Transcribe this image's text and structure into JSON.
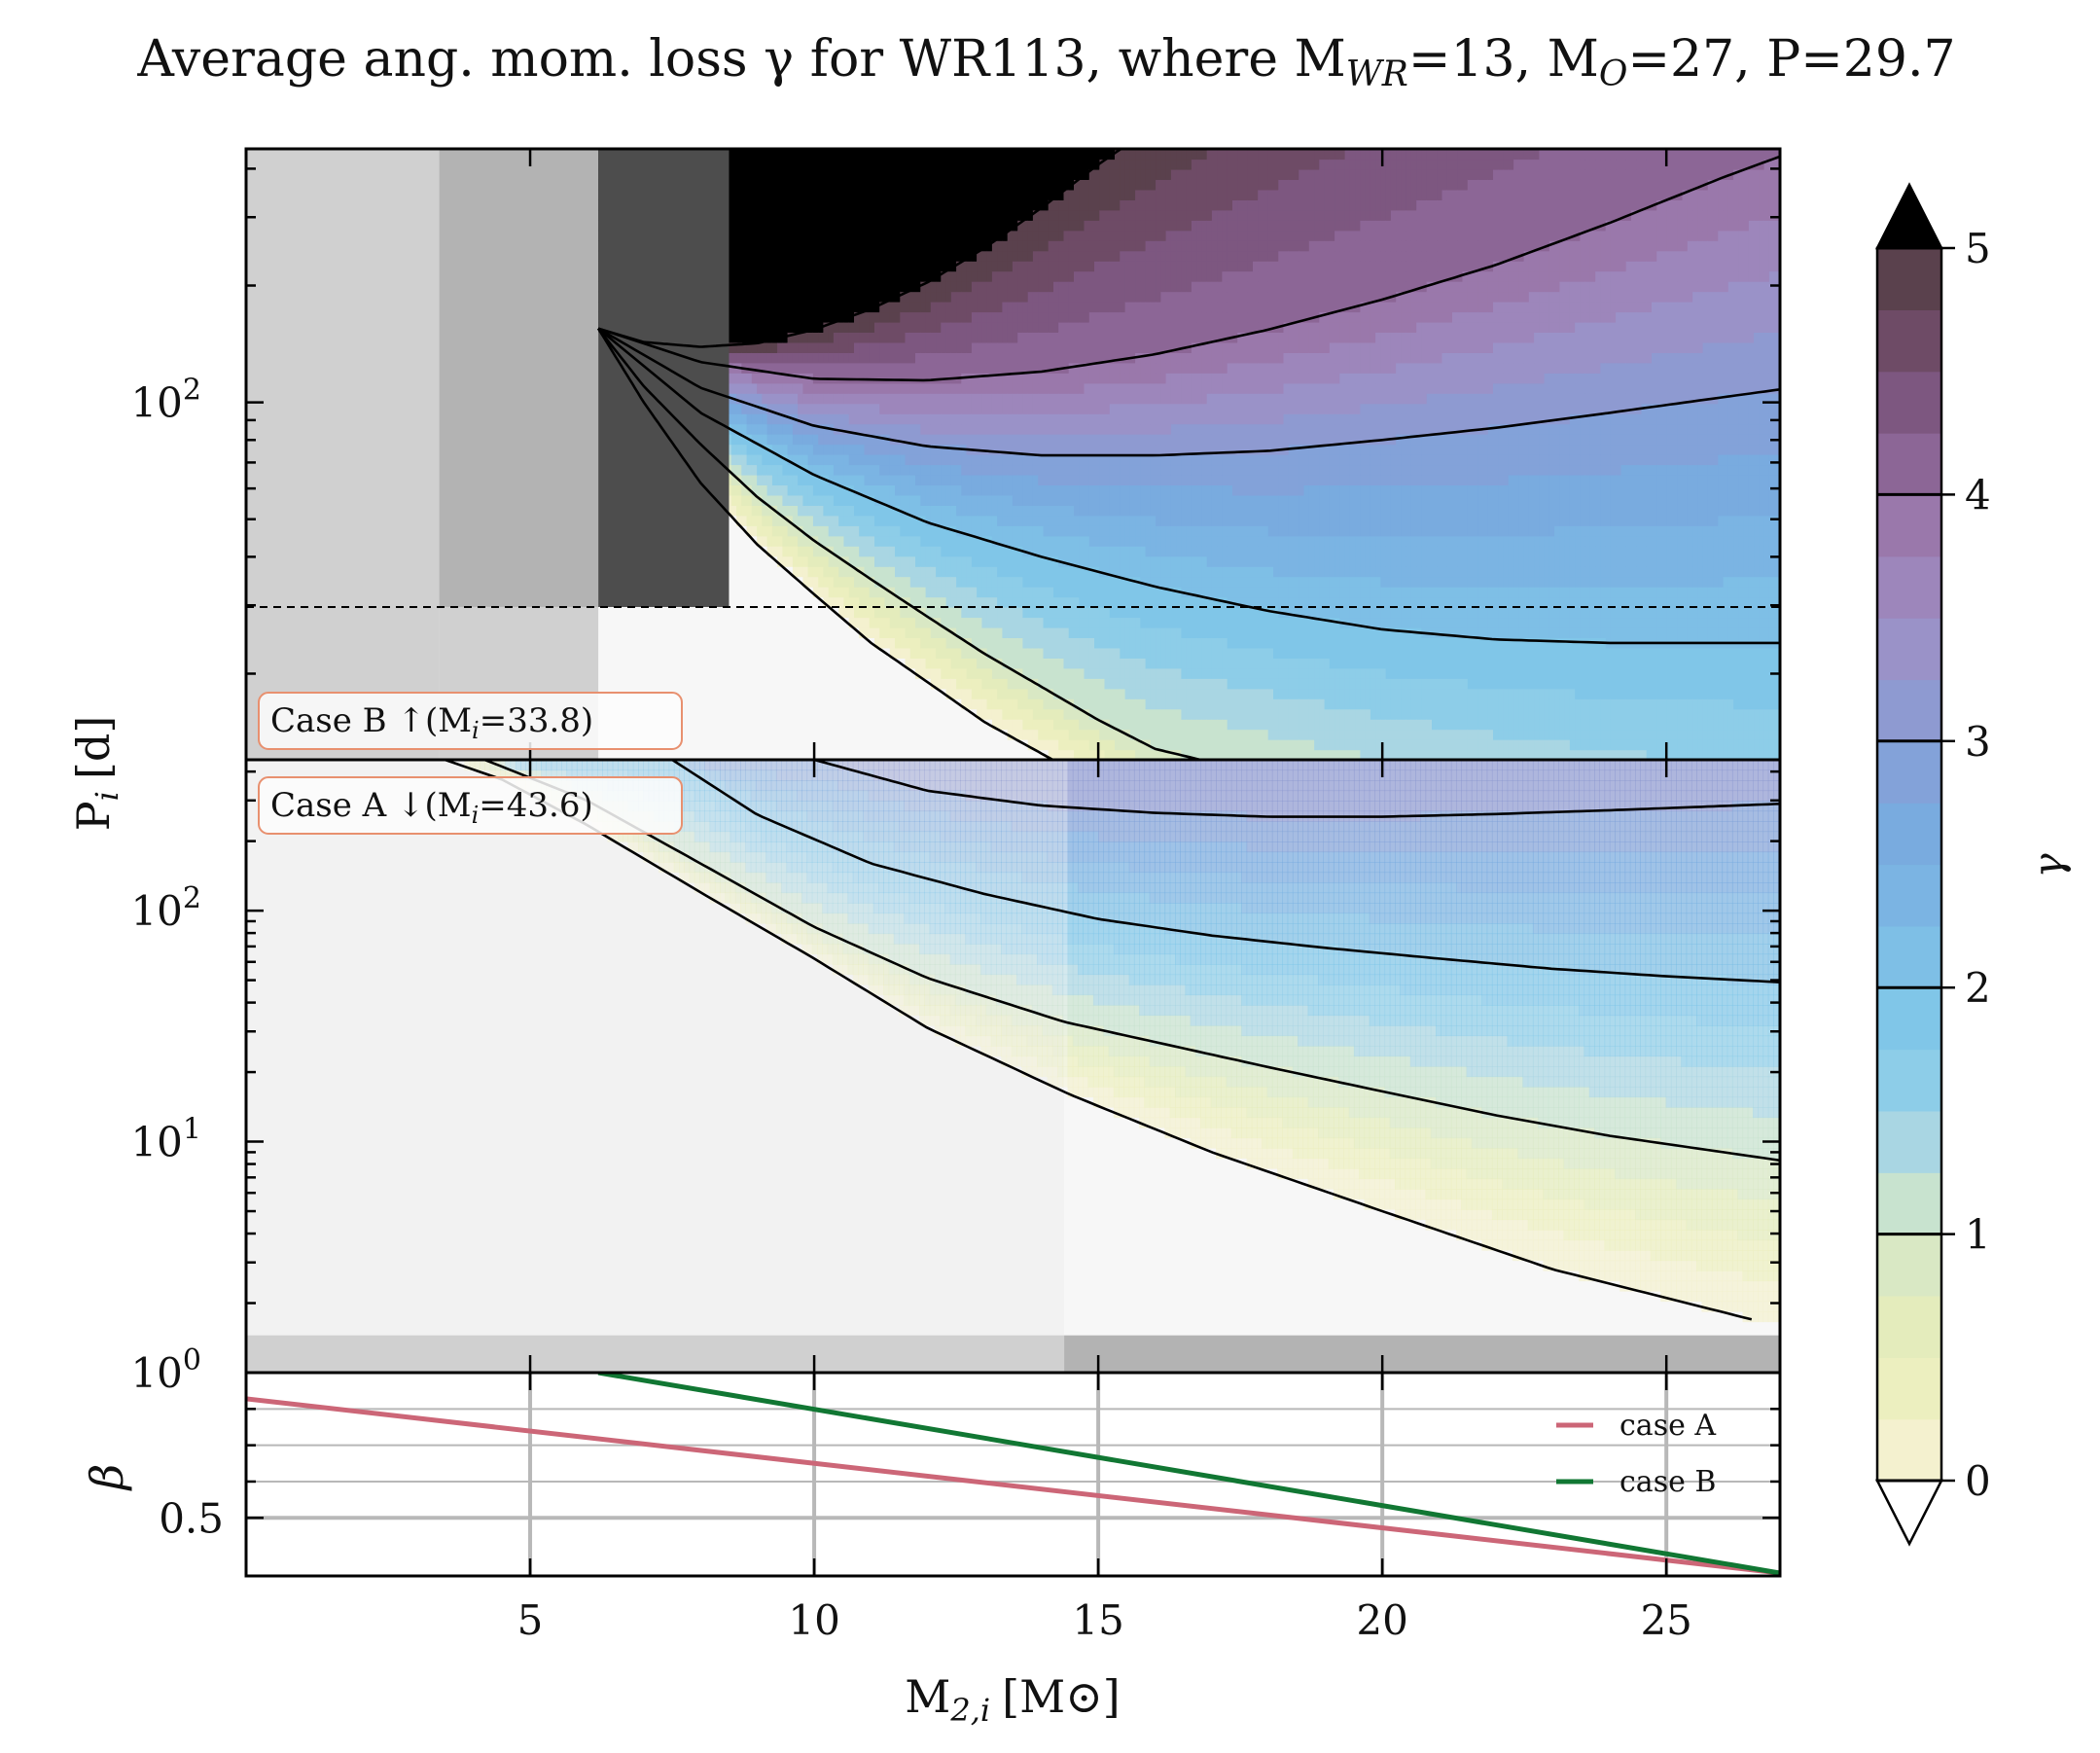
{
  "chart_data": {
    "type": "contour",
    "title": "Average ang. mom. loss γ for WR113, where M_WR=13, M_O=27, P=29.7",
    "title_parts": {
      "lead": "Average ang. mom. loss γ for WR113, where M",
      "sub1": "WR",
      "mid1": "=13, M",
      "sub2": "O",
      "tail": "=27, P=29.7"
    },
    "xlabel": "M_2,i [M_⊙]",
    "xlabel_parts": {
      "main": "M",
      "sub": "2,i",
      "unit": "[M⊙]"
    },
    "ylabel": "P_i [d]",
    "ylabel_parts": {
      "main": "P",
      "sub": "i",
      "unit": "[d]"
    },
    "xlim": [
      0,
      27
    ],
    "xticks": [
      5,
      10,
      15,
      20,
      25
    ],
    "xtick_labels": [
      "5",
      "10",
      "15",
      "20",
      "25"
    ],
    "panels": [
      {
        "name": "case-b-panel",
        "label": "Case B ↑(M_i=33.8)",
        "label_parts": {
          "lead": "Case B ↑(M",
          "sub": "i",
          "tail": "=33.8)"
        },
        "ylim": [
          12,
          450
        ],
        "yscale": "log",
        "yticks": [
          {
            "value": 100,
            "label": "10",
            "exp": "2"
          }
        ],
        "reference_period": 29.7,
        "gray_bands": [
          {
            "x": [
              0,
              3.4
            ],
            "y": [
              12,
              29.7
            ],
            "color": "#d0d0d0"
          },
          {
            "x": [
              0,
              3.4
            ],
            "y": [
              29.7,
              450
            ],
            "color": "#d0d0d0"
          },
          {
            "x": [
              3.4,
              6.2
            ],
            "y": [
              29.7,
              450
            ],
            "color": "#b3b3b3"
          },
          {
            "x": [
              3.4,
              6.2
            ],
            "y": [
              12,
              29.7
            ],
            "color": "#d0d0d0"
          },
          {
            "x": [
              6.2,
              8.5
            ],
            "y": [
              29.7,
              450
            ],
            "color": "#4d4d4d"
          }
        ],
        "gamma_contours": [
          {
            "gamma": 0,
            "points": [
              [
                6.2,
                155
              ],
              [
                7.0,
                100
              ],
              [
                8.0,
                62
              ],
              [
                9.0,
                43
              ],
              [
                10.0,
                32
              ],
              [
                11.0,
                24
              ],
              [
                12.0,
                19
              ],
              [
                13.0,
                15
              ],
              [
                14.2,
                12
              ]
            ]
          },
          {
            "gamma": 1,
            "points": [
              [
                6.2,
                155
              ],
              [
                7.0,
                110
              ],
              [
                8.0,
                78
              ],
              [
                9.0,
                57
              ],
              [
                10.0,
                44
              ],
              [
                11.0,
                35
              ],
              [
                12.0,
                28
              ],
              [
                13.0,
                22.5
              ],
              [
                14.0,
                18.5
              ],
              [
                15.0,
                15.2
              ],
              [
                16.0,
                12.8
              ],
              [
                16.8,
                12
              ]
            ]
          },
          {
            "gamma": 2,
            "points": [
              [
                6.2,
                155
              ],
              [
                8.0,
                94
              ],
              [
                10.0,
                65
              ],
              [
                12.0,
                49
              ],
              [
                14.0,
                40
              ],
              [
                16.0,
                33.5
              ],
              [
                18.0,
                29
              ],
              [
                20.0,
                26
              ],
              [
                22.0,
                24.5
              ],
              [
                24.0,
                24
              ],
              [
                27.0,
                24
              ]
            ]
          },
          {
            "gamma": 3,
            "points": [
              [
                6.2,
                155
              ],
              [
                8.0,
                109
              ],
              [
                10.0,
                87
              ],
              [
                12.0,
                77
              ],
              [
                14.0,
                73
              ],
              [
                16.0,
                73
              ],
              [
                18.0,
                75
              ],
              [
                20.0,
                80
              ],
              [
                22.0,
                86
              ],
              [
                24.0,
                94
              ],
              [
                27.0,
                108
              ]
            ]
          },
          {
            "gamma": 4,
            "points": [
              [
                6.2,
                155
              ],
              [
                8.0,
                127
              ],
              [
                10.0,
                115
              ],
              [
                12.0,
                114
              ],
              [
                14.0,
                120
              ],
              [
                16.0,
                133
              ],
              [
                18.0,
                154
              ],
              [
                20.0,
                184
              ],
              [
                22.0,
                226
              ],
              [
                24.0,
                290
              ],
              [
                26.0,
                380
              ],
              [
                27.0,
                430
              ]
            ]
          },
          {
            "gamma": 5,
            "points": [
              [
                6.2,
                155
              ],
              [
                7.0,
                143
              ],
              [
                8.0,
                139
              ],
              [
                9.0,
                142
              ],
              [
                10.0,
                154
              ],
              [
                11.0,
                174
              ],
              [
                12.0,
                204
              ],
              [
                13.0,
                250
              ],
              [
                14.0,
                317
              ],
              [
                15.0,
                410
              ],
              [
                15.4,
                450
              ]
            ]
          },
          {
            "gamma": 5.5,
            "points": [
              [
                6.2,
                155
              ],
              [
                8.0,
                146
              ],
              [
                10.0,
                165
              ],
              [
                12.0,
                230
              ],
              [
                13.0,
                300
              ],
              [
                14.0,
                400
              ],
              [
                14.3,
                450
              ]
            ]
          }
        ]
      },
      {
        "name": "case-a-panel",
        "label": "Case A ↓(M_i=43.6)",
        "label_parts": {
          "lead": "Case A ↓(M",
          "sub": "i",
          "tail": "=43.6)"
        },
        "ylim": [
          1,
          450
        ],
        "yscale": "log",
        "yticks": [
          {
            "value": 1,
            "label": "10",
            "exp": "0"
          },
          {
            "value": 10,
            "label": "10",
            "exp": "1"
          },
          {
            "value": 100,
            "label": "10",
            "exp": "2"
          }
        ],
        "gray_bands": [
          {
            "x": [
              0,
              14.4
            ],
            "y": [
              1,
              1.45
            ],
            "color": "#d0d0d0"
          },
          {
            "x": [
              14.4,
              27
            ],
            "y": [
              1,
              1.45
            ],
            "color": "#b3b3b3"
          }
        ],
        "gamma_contours": [
          {
            "gamma": 0,
            "points": [
              [
                3.5,
                450
              ],
              [
                4.5,
                370
              ],
              [
                6,
                235
              ],
              [
                8,
                120
              ],
              [
                10,
                62
              ],
              [
                12,
                31
              ],
              [
                14.5,
                16
              ],
              [
                17,
                9
              ],
              [
                20,
                5
              ],
              [
                23,
                2.8
              ],
              [
                26.5,
                1.7
              ]
            ]
          },
          {
            "gamma": 1,
            "points": [
              [
                4.2,
                450
              ],
              [
                6,
                300
              ],
              [
                8,
                160
              ],
              [
                10,
                85
              ],
              [
                12,
                51
              ],
              [
                14.4,
                33
              ],
              [
                16,
                27
              ],
              [
                18,
                21
              ],
              [
                20,
                16.5
              ],
              [
                22,
                13
              ],
              [
                24,
                10.6
              ],
              [
                27,
                8.3
              ]
            ]
          },
          {
            "gamma": 2,
            "points": [
              [
                7.5,
                450
              ],
              [
                9,
                260
              ],
              [
                11,
                160
              ],
              [
                13,
                118
              ],
              [
                15,
                92
              ],
              [
                17,
                78
              ],
              [
                19,
                69
              ],
              [
                21,
                62
              ],
              [
                23,
                56
              ],
              [
                25,
                52
              ],
              [
                27,
                49
              ]
            ]
          },
          {
            "gamma": 3,
            "points": [
              [
                10,
                450
              ],
              [
                12,
                330
              ],
              [
                14,
                285
              ],
              [
                16,
                265
              ],
              [
                18,
                255
              ],
              [
                20,
                255
              ],
              [
                22,
                262
              ],
              [
                24,
                272
              ],
              [
                27,
                290
              ]
            ]
          }
        ]
      }
    ],
    "beta_panel": {
      "ylabel": "β",
      "ylim": [
        0.3,
        1.0
      ],
      "yticks": [
        0.5
      ],
      "ytick_labels": [
        "0.5"
      ],
      "gridlines_y": [
        0.5,
        0.625,
        0.75,
        0.875
      ],
      "series": [
        {
          "name": "case A",
          "color": "#cc6677",
          "x": [
            0,
            27
          ],
          "y": [
            0.91,
            0.31
          ]
        },
        {
          "name": "case B",
          "color": "#117733",
          "x": [
            6.2,
            27
          ],
          "y": [
            1.0,
            0.31
          ]
        }
      ],
      "legend_position": "upper-right"
    },
    "colorbar": {
      "label": "γ",
      "range": [
        0,
        5
      ],
      "ticks": [
        0,
        1,
        2,
        3,
        4,
        5
      ],
      "tick_labels": [
        "0",
        "1",
        "2",
        "3",
        "4",
        "5"
      ],
      "extend": "both",
      "colors": [
        "#f4f1cf",
        "#ecefbf",
        "#e4ecbc",
        "#d9e8c4",
        "#c8e3cf",
        "#a9d6e3",
        "#8dcde8",
        "#80c6e8",
        "#7ebfe6",
        "#7bb4e3",
        "#79abdf",
        "#83a2d9",
        "#8e9ad1",
        "#9a92c8",
        "#9d86bb",
        "#9a78ab",
        "#8c6696",
        "#7d5780",
        "#6e4b66",
        "#5a414d"
      ],
      "over_color": "#000000",
      "under_color": "#ffffff"
    }
  }
}
